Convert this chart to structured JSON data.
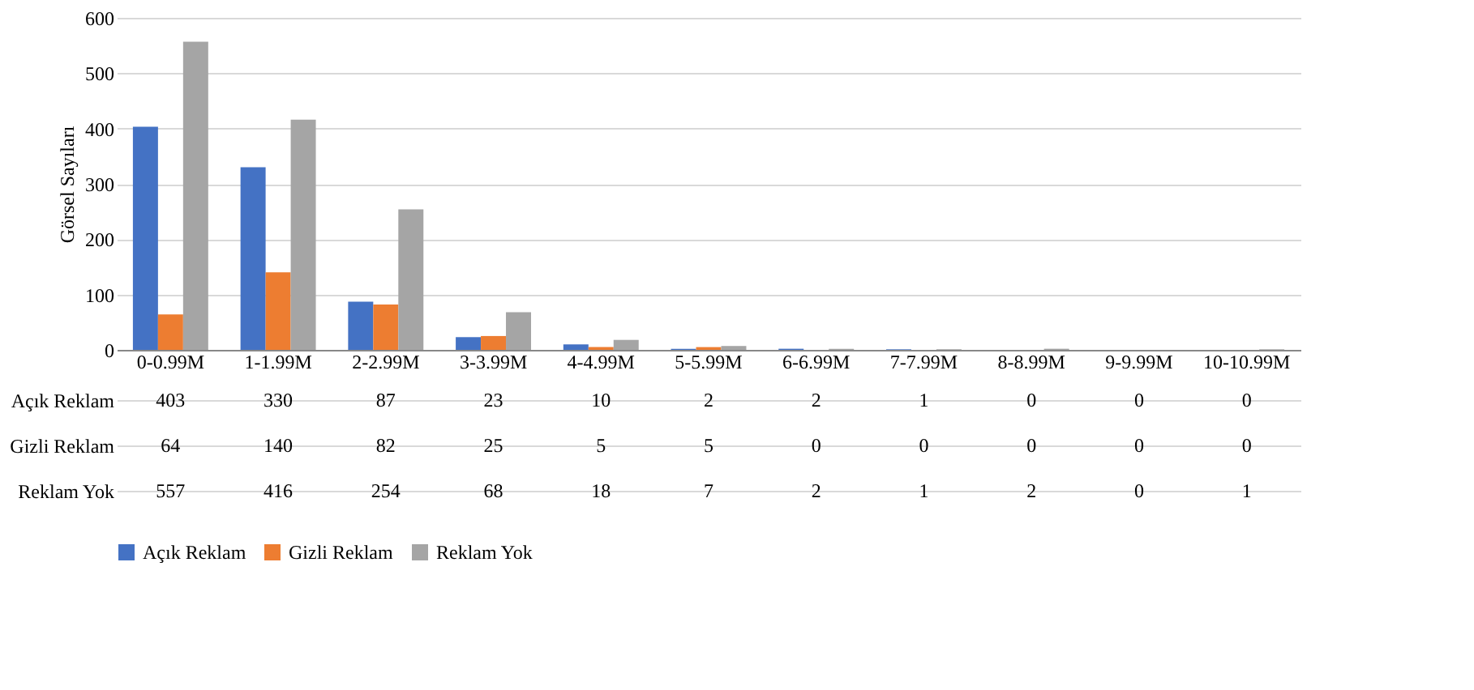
{
  "chart_data": {
    "type": "bar",
    "ylabel": "Görsel Sayıları",
    "categories": [
      "0-0.99M",
      "1-1.99M",
      "2-2.99M",
      "3-3.99M",
      "4-4.99M",
      "5-5.99M",
      "6-6.99M",
      "7-7.99M",
      "8-8.99M",
      "9-9.99M",
      "10-10.99M"
    ],
    "series": [
      {
        "name": "Açık Reklam",
        "color": "#4472c4",
        "values": [
          403,
          330,
          87,
          23,
          10,
          2,
          2,
          1,
          0,
          0,
          0
        ]
      },
      {
        "name": "Gizli Reklam",
        "color": "#ed7d31",
        "values": [
          64,
          140,
          82,
          25,
          5,
          5,
          0,
          0,
          0,
          0,
          0
        ]
      },
      {
        "name": "Reklam Yok",
        "color": "#a5a5a5",
        "values": [
          557,
          416,
          254,
          68,
          18,
          7,
          2,
          1,
          2,
          0,
          1
        ]
      }
    ],
    "ylim": [
      0,
      600
    ],
    "yticks": [
      0,
      100,
      200,
      300,
      400,
      500,
      600
    ],
    "grid": "y",
    "legend": "bottom",
    "data_labels": true
  }
}
